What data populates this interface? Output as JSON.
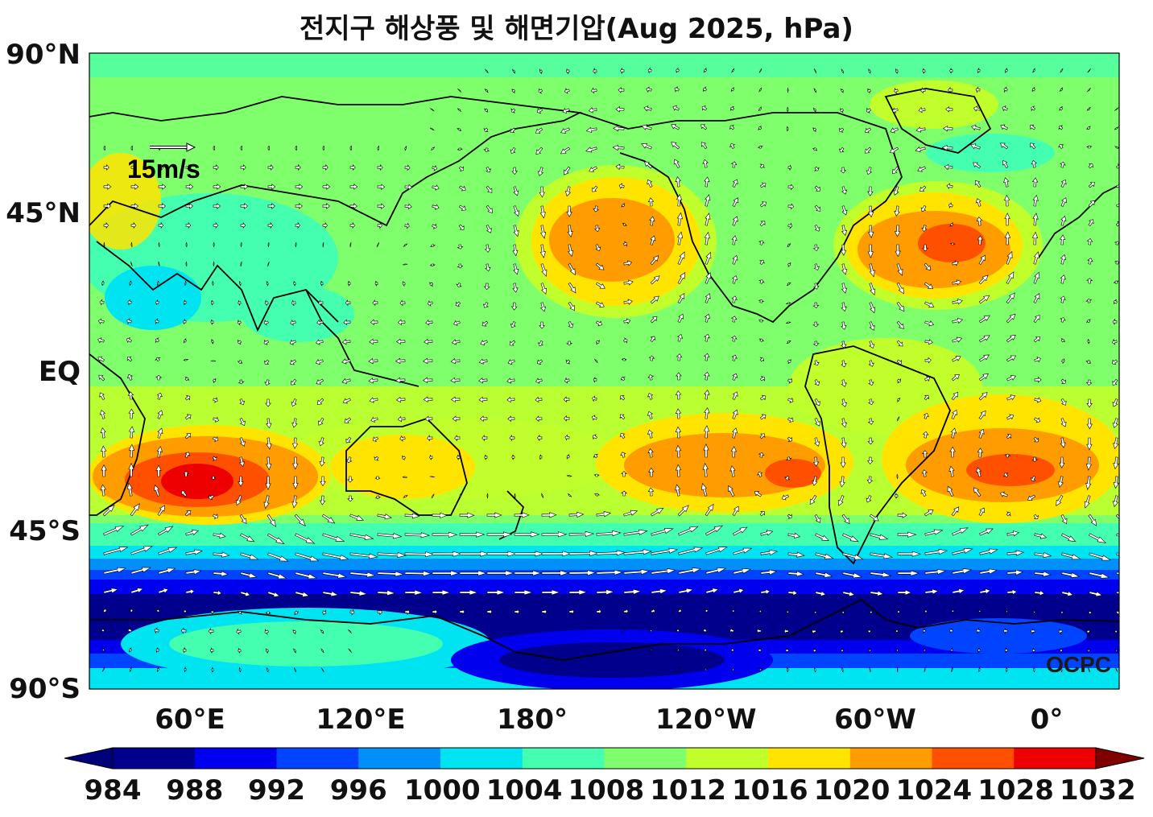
{
  "title": "전지구 해상풍 및 해면기압(Aug 2025, hPa)",
  "lat_labels": [
    "90°N",
    "45°N",
    "EQ",
    "45°S",
    "90°S"
  ],
  "lon_labels": [
    "60°E",
    "120°E",
    "180°",
    "120°W",
    "60°W",
    "0°"
  ],
  "reference_vector": {
    "label": "15m/s",
    "speed": 15
  },
  "watermark": "OCPC",
  "colorbar": {
    "ticks": [
      "984",
      "988",
      "992",
      "996",
      "1000",
      "1004",
      "1008",
      "1012",
      "1016",
      "1020",
      "1024",
      "1028",
      "1032"
    ],
    "colors": [
      "#00008c",
      "#0000ee",
      "#0044ff",
      "#0090f8",
      "#00e4f2",
      "#44ffb0",
      "#80ff6c",
      "#c0ff2c",
      "#ffe400",
      "#ff9c00",
      "#ff5000",
      "#ee0000"
    ],
    "under_color": "#00007a",
    "over_color": "#800000",
    "extend": "both"
  },
  "pressure_features": [
    {
      "kind": "high",
      "name": "",
      "lon": 65,
      "lat": -30,
      "hpa": 1029
    },
    {
      "kind": "high",
      "name": "",
      "lon": -150,
      "lat": 38,
      "hpa": 1024
    },
    {
      "kind": "high",
      "name": "",
      "lon": -35,
      "lat": 35,
      "hpa": 1026
    },
    {
      "kind": "high",
      "name": "",
      "lon": -95,
      "lat": -28,
      "hpa": 1026
    },
    {
      "kind": "high",
      "name": "",
      "lon": -10,
      "lat": -27,
      "hpa": 1026
    },
    {
      "kind": "low",
      "name": "",
      "lon": 90,
      "lat": -60,
      "hpa": 984
    }
  ]
}
